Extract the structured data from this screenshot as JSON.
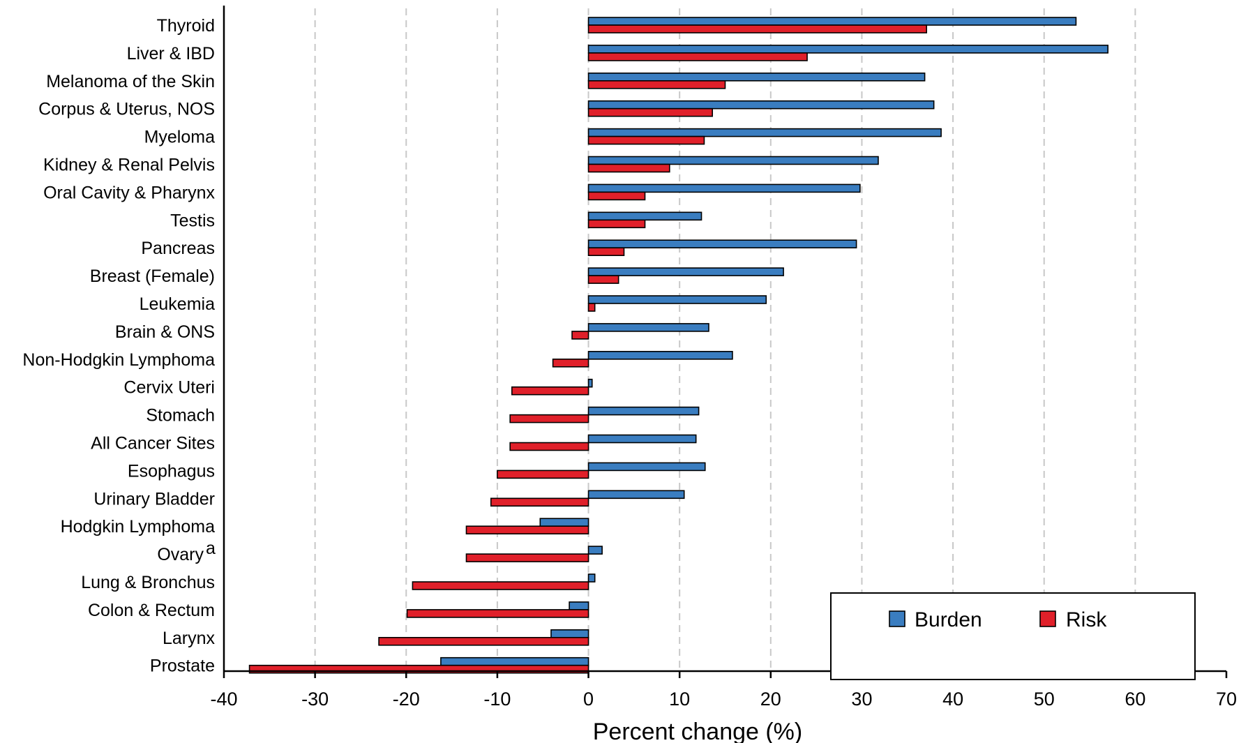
{
  "chart_data": {
    "type": "bar",
    "orientation": "horizontal",
    "title": "",
    "xlabel": "Percent change (%)",
    "ylabel": "",
    "xlim": [
      -40,
      70
    ],
    "x_ticks": [
      -40,
      -30,
      -20,
      -10,
      0,
      10,
      20,
      30,
      40,
      50,
      60,
      70
    ],
    "x_tick_labels": [
      "-40",
      "-30",
      "-20",
      "-10",
      "0",
      "10",
      "20",
      "30",
      "40",
      "50",
      "60",
      "70"
    ],
    "grid": "vertical dashed",
    "categories": [
      "Thyroid",
      "Liver & IBD",
      "Melanoma of the Skin",
      "Corpus & Uterus, NOS",
      "Myeloma",
      "Kidney & Renal Pelvis",
      "Oral Cavity & Pharynx",
      "Testis",
      "Pancreas",
      "Breast (Female)",
      "Leukemia",
      "Brain & ONS",
      "Non-Hodgkin Lymphoma",
      "Cervix Uteri",
      "Stomach",
      "All Cancer Sites",
      "Esophagus",
      "Urinary Bladder",
      "Hodgkin Lymphoma",
      "Ovary",
      "Lung & Bronchus",
      "Colon & Rectum",
      "Larynx",
      "Prostate"
    ],
    "category_superscripts": {
      "Ovary": "a"
    },
    "series": [
      {
        "name": "Burden",
        "color": "#3a7dc0",
        "values": [
          53.5,
          57.0,
          36.9,
          37.9,
          38.7,
          31.8,
          29.8,
          12.4,
          29.4,
          21.4,
          19.5,
          13.2,
          15.8,
          0.4,
          12.1,
          11.8,
          12.8,
          10.5,
          -5.3,
          1.5,
          0.7,
          -2.1,
          -4.1,
          -16.2
        ]
      },
      {
        "name": "Risk",
        "color": "#e0202a",
        "values": [
          37.1,
          24.0,
          15.0,
          13.6,
          12.7,
          8.9,
          6.2,
          6.2,
          3.9,
          3.3,
          0.7,
          -1.8,
          -3.9,
          -8.4,
          -8.6,
          -8.6,
          -10.0,
          -10.7,
          -13.4,
          -13.4,
          -19.3,
          -19.9,
          -23.0,
          -37.2
        ]
      }
    ],
    "legend": {
      "position": "bottom-right",
      "entries": [
        "Burden",
        "Risk"
      ]
    }
  }
}
